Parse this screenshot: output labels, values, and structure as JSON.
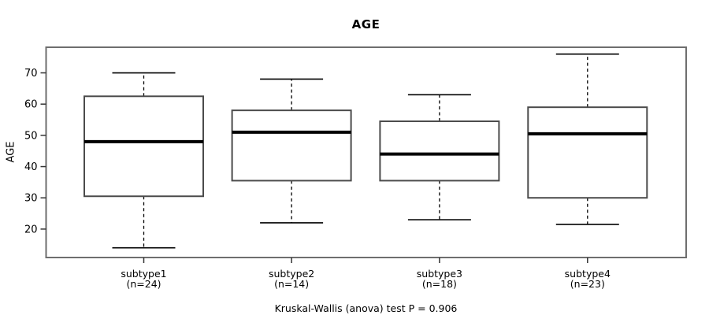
{
  "chart_data": {
    "type": "boxplot",
    "title": "AGE",
    "ylabel": "AGE",
    "xlabel": "",
    "caption": "Kruskal-Wallis (anova) test P = 0.906",
    "yticks": [
      20,
      30,
      40,
      50,
      60,
      70
    ],
    "ylim": [
      10.9,
      78.2
    ],
    "grid": false,
    "legend": null,
    "groups": [
      {
        "label": "subtype1",
        "n": 24,
        "n_label": "(n=24)",
        "whisker_low": 14,
        "q1": 30.5,
        "median": 48,
        "q3": 62.5,
        "whisker_high": 70
      },
      {
        "label": "subtype2",
        "n": 14,
        "n_label": "(n=14)",
        "whisker_low": 22,
        "q1": 35.5,
        "median": 51,
        "q3": 58,
        "whisker_high": 68
      },
      {
        "label": "subtype3",
        "n": 18,
        "n_label": "(n=18)",
        "whisker_low": 23,
        "q1": 35.5,
        "median": 44,
        "q3": 54.5,
        "whisker_high": 63
      },
      {
        "label": "subtype4",
        "n": 23,
        "n_label": "(n=23)",
        "whisker_low": 21.5,
        "q1": 30,
        "median": 50.5,
        "q3": 59,
        "whisker_high": 76
      }
    ],
    "colors": {
      "box_fill": "#ffffff",
      "box_border": "#4b4b4b",
      "line": "#000000",
      "plot_border": "#6e6e6e",
      "text": "#000000"
    }
  }
}
